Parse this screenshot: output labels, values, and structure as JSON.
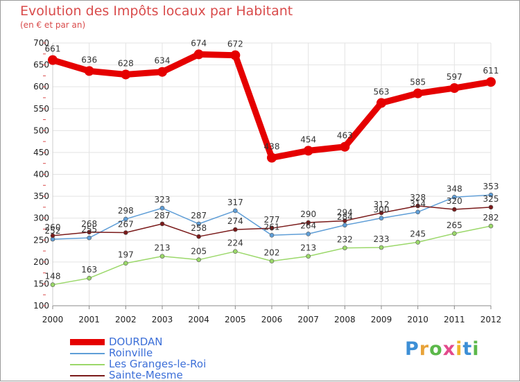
{
  "title": "Evolution des Impôts locaux par Habitant",
  "subtitle": "(en € et par an)",
  "logo": {
    "text": "Proxiti",
    "letter_colors": [
      "#3d8fd6",
      "#e8a33a",
      "#5bb84a",
      "#e34a8c",
      "#f0b429",
      "#3d8fd6",
      "#5bb84a"
    ]
  },
  "chart_data": {
    "type": "line",
    "x": [
      2000,
      2001,
      2002,
      2003,
      2004,
      2005,
      2006,
      2007,
      2008,
      2009,
      2010,
      2011,
      2012
    ],
    "ylim": [
      100,
      700
    ],
    "yticks": [
      100,
      150,
      200,
      250,
      300,
      350,
      400,
      450,
      500,
      550,
      600,
      650,
      700
    ],
    "grid": true,
    "legend_position": "bottom-left",
    "series": [
      {
        "name": "DOURDAN",
        "color": "#e50000",
        "emphasis": true,
        "values": [
          661,
          636,
          628,
          634,
          674,
          672,
          438,
          454,
          463,
          563,
          585,
          597,
          611
        ]
      },
      {
        "name": "Roinville",
        "color": "#5f9ed7",
        "values": [
          252,
          255,
          298,
          323,
          287,
          317,
          261,
          264,
          284,
          300,
          314,
          348,
          353
        ]
      },
      {
        "name": "Les Granges-le-Roi",
        "color": "#9bd86a",
        "values": [
          148,
          163,
          197,
          213,
          205,
          224,
          202,
          213,
          232,
          233,
          245,
          265,
          282
        ]
      },
      {
        "name": "Sainte-Mesme",
        "color": "#7a1a1a",
        "values": [
          260,
          268,
          267,
          287,
          258,
          274,
          277,
          290,
          294,
          312,
          328,
          320,
          325
        ]
      }
    ]
  }
}
